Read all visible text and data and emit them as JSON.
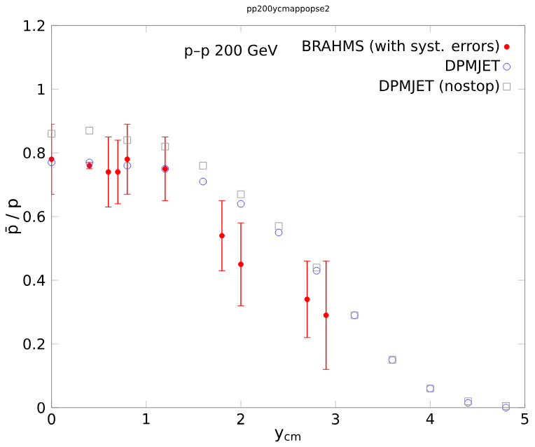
{
  "chart_data": {
    "type": "scatter",
    "title": "pp200ycmappopse2",
    "xlabel": "y$_{cm}$",
    "ylabel": "p̄ / p",
    "annotations": [
      "p–p 200 GeV"
    ],
    "xlim": [
      0,
      5
    ],
    "ylim": [
      0,
      1.2
    ],
    "xticks": [
      0,
      1,
      2,
      3,
      4,
      5
    ],
    "yticks": [
      0,
      0.2,
      0.4,
      0.6,
      0.8,
      1,
      1.2
    ],
    "legend": "top right",
    "grid": false,
    "series": [
      {
        "name": "BRAHMS (with syst. errors)",
        "color": "#ff0000",
        "marker": "circle",
        "x": [
          0,
          0.4,
          0.6,
          0.7,
          0.8,
          1.2,
          1.8,
          2.0,
          2.7,
          2.9
        ],
        "values": [
          0.78,
          0.76,
          0.74,
          0.74,
          0.78,
          0.75,
          0.54,
          0.45,
          0.34,
          0.29
        ],
        "errors": [
          0.11,
          0.01,
          0.11,
          0.1,
          0.11,
          0.1,
          0.11,
          0.13,
          0.12,
          0.17
        ]
      },
      {
        "name": "DPMJET",
        "color": "#4444ff",
        "marker": "circle",
        "x": [
          0,
          0.4,
          0.8,
          1.2,
          1.6,
          2.0,
          2.4,
          2.8,
          3.2,
          3.6,
          4.0,
          4.4,
          4.8
        ],
        "values": [
          0.77,
          0.77,
          0.76,
          0.75,
          0.71,
          0.64,
          0.55,
          0.43,
          0.29,
          0.15,
          0.06,
          0.015,
          0.0
        ]
      },
      {
        "name": "DPMJET (nostop)",
        "color": "#999999",
        "marker": "square",
        "x": [
          0,
          0.4,
          0.8,
          1.2,
          1.6,
          2.0,
          2.4,
          2.8,
          3.2,
          3.6,
          4.0,
          4.4,
          4.8
        ],
        "values": [
          0.86,
          0.87,
          0.84,
          0.82,
          0.76,
          0.67,
          0.57,
          0.44,
          0.29,
          0.15,
          0.06,
          0.02,
          0.005
        ]
      }
    ]
  }
}
